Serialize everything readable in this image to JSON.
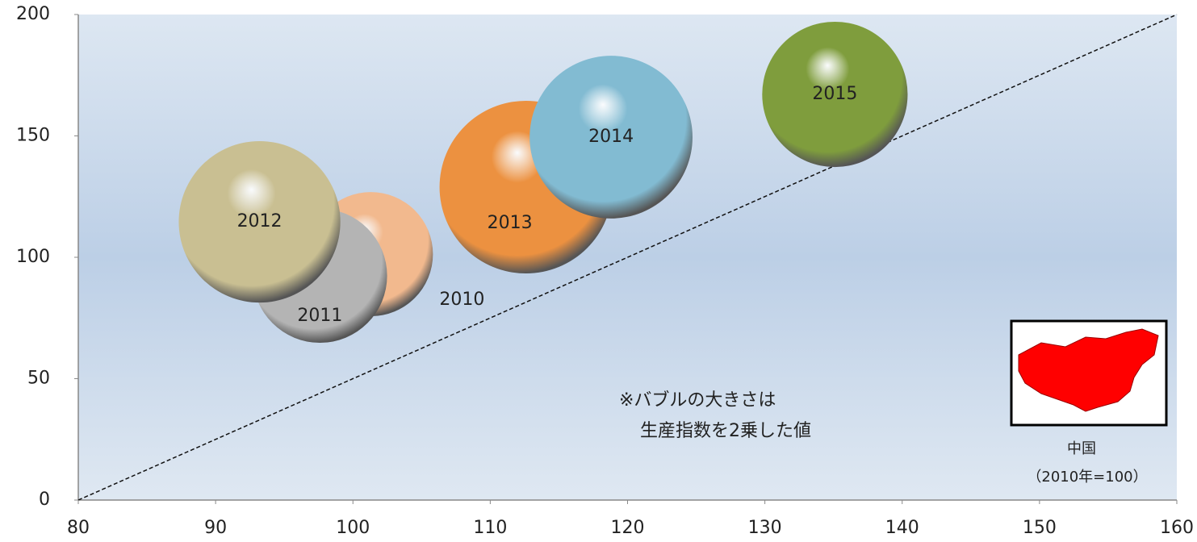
{
  "chart_data": {
    "type": "bubble",
    "xlim": [
      80,
      160
    ],
    "ylim": [
      0,
      200
    ],
    "xticks": [
      80,
      90,
      100,
      110,
      120,
      130,
      140,
      150,
      160
    ],
    "yticks": [
      0,
      50,
      100,
      150,
      200
    ],
    "series": [
      {
        "name": "2010",
        "color": "#f2b98e",
        "x": [
          101.3
        ],
        "values": [
          101.3
        ],
        "sizes": [
          10000
        ]
      },
      {
        "name": "2011",
        "color": "#b4b4b4",
        "x": [
          97.6
        ],
        "values": [
          92.4
        ],
        "sizes": [
          11664
        ]
      },
      {
        "name": "2012",
        "color": "#c9bf92",
        "x": [
          93.2
        ],
        "values": [
          114.6
        ],
        "sizes": [
          16900
        ]
      },
      {
        "name": "2013",
        "color": "#ec9140",
        "x": [
          112.6
        ],
        "values": [
          128.9
        ],
        "sizes": [
          19321
        ]
      },
      {
        "name": "2014",
        "color": "#82bbd2",
        "x": [
          118.8
        ],
        "values": [
          149.5
        ],
        "sizes": [
          17161
        ]
      },
      {
        "name": "2015",
        "color": "#7f9d3d",
        "x": [
          135.1
        ],
        "values": [
          167.1
        ],
        "sizes": [
          13689
        ]
      }
    ],
    "annotations": [
      "※バブルの大きさは",
      "生産指数を2乗した値"
    ],
    "map_caption": [
      "中国",
      "（2010年=100）"
    ]
  }
}
